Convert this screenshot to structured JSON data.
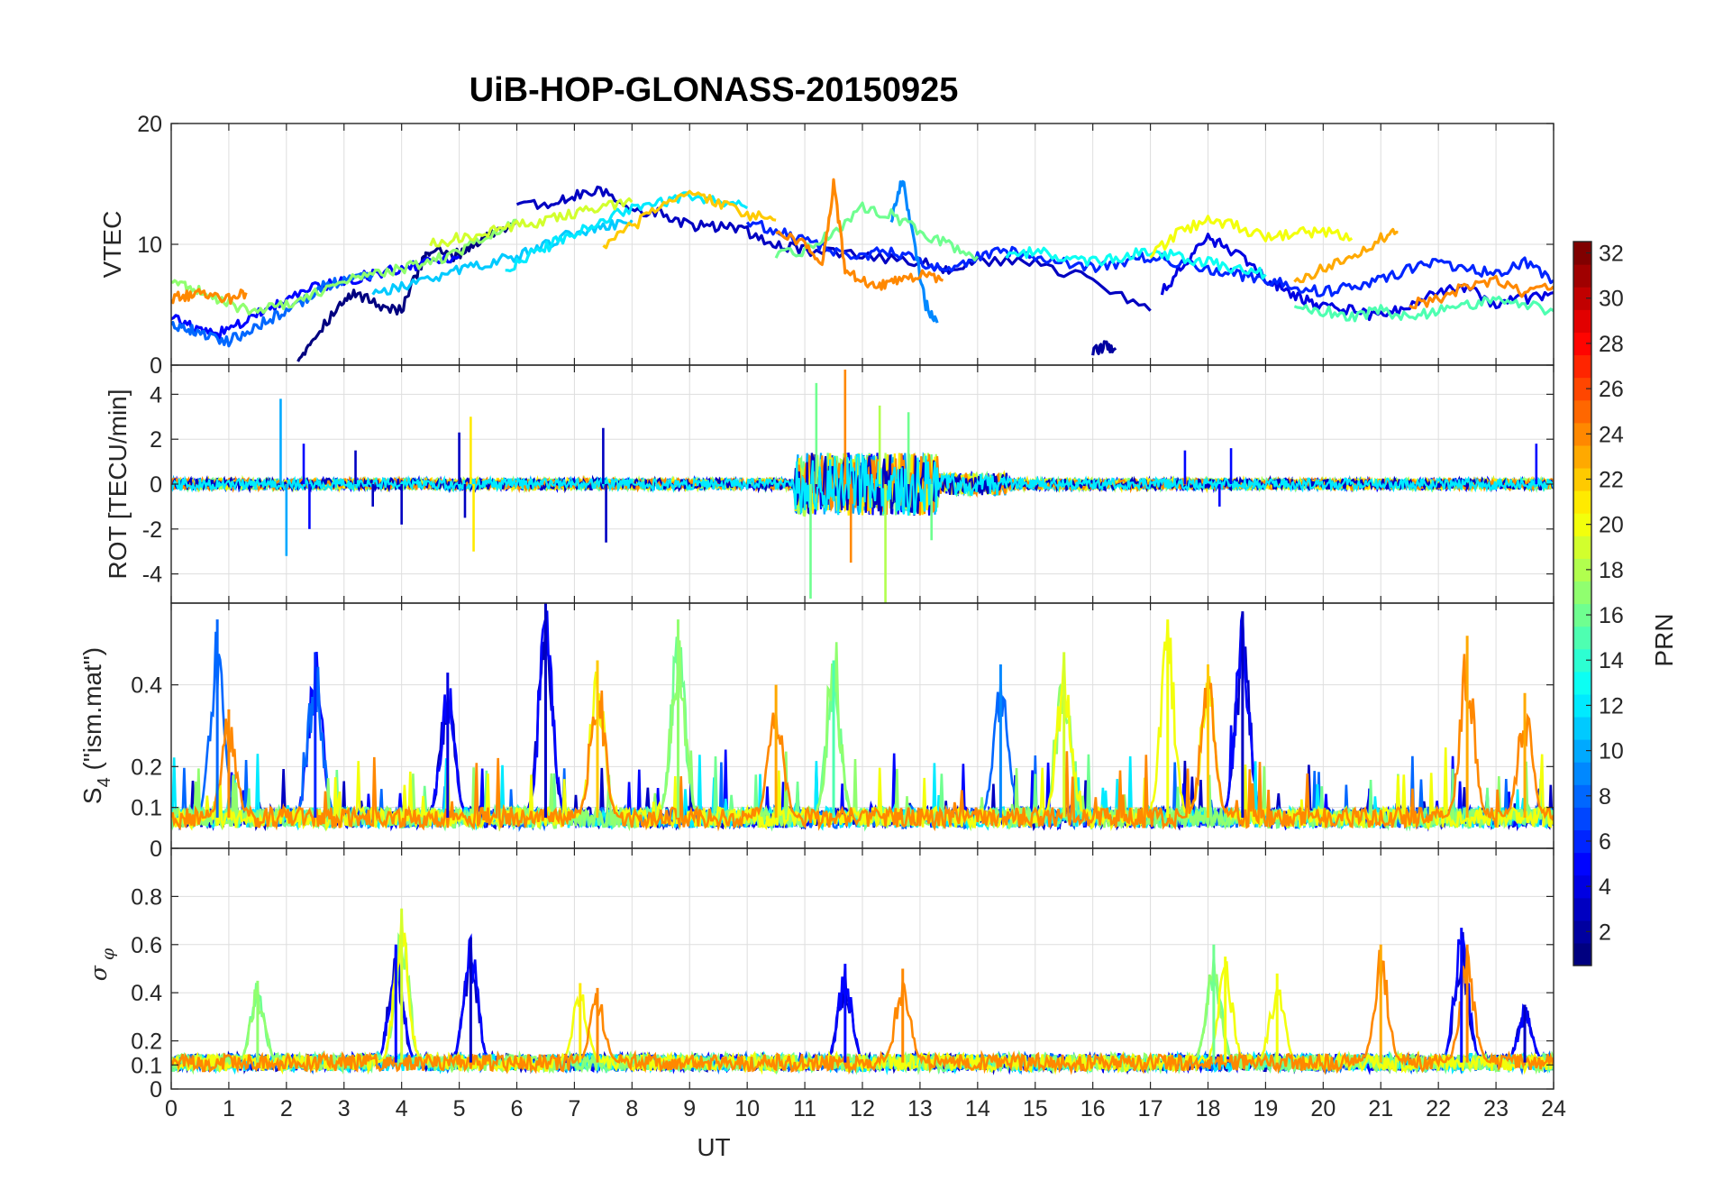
{
  "chart_data": [
    {
      "type": "line",
      "title": "UiB-HOP-GLONASS-20150925",
      "panel": "vtec",
      "ylabel": "VTEC",
      "ylim": [
        0,
        20
      ],
      "yticks": [
        0,
        10,
        20
      ],
      "xlim": [
        0,
        24
      ],
      "grid": true,
      "series": [
        {
          "prn": 1,
          "x": [
            2.2,
            2.5,
            2.9,
            3.2,
            3.6,
            4.0,
            4.3,
            4.5,
            4.9,
            5.2,
            5.6,
            6.0
          ],
          "y": [
            0.5,
            2.5,
            4.8,
            6.0,
            5.0,
            4.5,
            8.0,
            9.5,
            9.0,
            9.8,
            11.0,
            12.0
          ]
        },
        {
          "prn": 2,
          "x": [
            16.0,
            16.2,
            16.4
          ],
          "y": [
            1.0,
            1.6,
            1.4
          ]
        },
        {
          "prn": 3,
          "x": [
            6.0,
            6.6,
            7.0,
            7.5,
            8.0,
            8.5,
            9.0,
            9.5,
            10.0,
            10.5,
            11.0,
            12.0,
            13.0,
            13.5,
            14.0,
            15.0,
            16.0,
            17.0
          ],
          "y": [
            13.5,
            13.2,
            14.0,
            14.4,
            13.0,
            12.5,
            11.5,
            11.5,
            11.0,
            10.0,
            9.5,
            9.0,
            8.5,
            8.0,
            8.5,
            8.5,
            7.0,
            4.5
          ]
        },
        {
          "prn": 4,
          "x": [
            17.2,
            17.6,
            18.0,
            18.4,
            18.8,
            19.2,
            19.6,
            20.0,
            20.5,
            21.0,
            21.5,
            22.0,
            22.5,
            23.0,
            23.5,
            24.0
          ],
          "y": [
            6.0,
            8.5,
            10.5,
            9.5,
            8.0,
            6.5,
            5.5,
            5.0,
            4.5,
            4.0,
            4.8,
            6.0,
            6.5,
            5.0,
            5.5,
            6.0
          ]
        },
        {
          "prn": 5,
          "x": [
            0.0,
            0.4,
            0.8,
            1.2,
            1.6,
            2.0,
            2.5,
            3.0,
            3.5,
            4.0,
            4.5,
            5.0
          ],
          "y": [
            4.0,
            3.0,
            2.5,
            3.5,
            4.5,
            5.5,
            6.5,
            7.0,
            7.5,
            8.0,
            8.5,
            9.0
          ]
        },
        {
          "prn": 6,
          "x": [
            10.0,
            10.5,
            11.0,
            11.5,
            12.0,
            12.5,
            13.0,
            13.5,
            14.0,
            14.5,
            15.0,
            15.5,
            16.0,
            16.5,
            17.0,
            17.5,
            18.0,
            18.5,
            19.0,
            19.5,
            20.0,
            20.5,
            21.0,
            21.5,
            22.0,
            22.5,
            23.0,
            23.5,
            24.0
          ],
          "y": [
            12.0,
            11.0,
            10.5,
            9.5,
            9.0,
            9.5,
            8.5,
            8.0,
            9.0,
            9.5,
            9.0,
            8.5,
            8.0,
            8.5,
            9.0,
            8.5,
            8.0,
            7.5,
            7.0,
            6.5,
            6.0,
            6.5,
            7.0,
            8.0,
            8.5,
            8.0,
            7.5,
            8.5,
            7.0
          ]
        },
        {
          "prn": 8,
          "x": [
            0.0,
            0.3,
            0.6,
            1.0,
            1.4,
            1.8,
            2.2,
            2.6,
            3.0,
            3.5
          ],
          "y": [
            3.5,
            3.0,
            2.5,
            2.0,
            3.0,
            4.0,
            5.0,
            6.5,
            7.0,
            7.5
          ]
        },
        {
          "prn": 9,
          "x": [
            12.5,
            12.7,
            12.9,
            13.1,
            13.3
          ],
          "y": [
            12.0,
            15.5,
            10.0,
            5.0,
            3.5
          ]
        },
        {
          "prn": 11,
          "x": [
            3.5,
            4.0,
            4.5,
            5.0,
            5.5,
            6.0,
            6.5,
            7.0,
            7.5,
            8.0
          ],
          "y": [
            6.0,
            6.5,
            7.0,
            8.0,
            8.5,
            9.0,
            10.0,
            11.0,
            11.5,
            12.0
          ]
        },
        {
          "prn": 12,
          "x": [
            5.8,
            6.2,
            6.6,
            7.0,
            7.5,
            8.0,
            8.5,
            9.0,
            9.5,
            10.0
          ],
          "y": [
            8.0,
            9.0,
            10.0,
            11.0,
            12.0,
            13.0,
            13.5,
            14.0,
            13.5,
            13.0
          ]
        },
        {
          "prn": 13,
          "x": [
            14.5,
            15.0,
            15.5,
            16.0,
            16.5,
            17.0,
            17.5,
            18.0,
            18.5,
            19.0
          ],
          "y": [
            9.0,
            9.5,
            9.0,
            8.5,
            9.0,
            9.5,
            9.0,
            8.5,
            8.0,
            7.5
          ]
        },
        {
          "prn": 15,
          "x": [
            19.5,
            20.0,
            20.5,
            21.0,
            21.5,
            22.0,
            22.5,
            23.0,
            23.5,
            24.0
          ],
          "y": [
            5.0,
            4.5,
            4.0,
            4.5,
            4.0,
            4.5,
            5.0,
            5.5,
            5.0,
            4.5
          ]
        },
        {
          "prn": 16,
          "x": [
            10.5,
            11.0,
            11.5,
            12.0,
            12.5,
            13.0,
            13.5,
            14.0
          ],
          "y": [
            9.0,
            9.5,
            11.0,
            13.0,
            12.5,
            11.0,
            10.0,
            9.0
          ]
        },
        {
          "prn": 17,
          "x": [
            0.0,
            0.3,
            0.6,
            1.0,
            1.5,
            2.0,
            2.5,
            3.0,
            3.5,
            4.0,
            4.5,
            5.0,
            5.5,
            6.0
          ],
          "y": [
            7.0,
            6.5,
            6.0,
            5.0,
            4.5,
            5.0,
            6.0,
            7.0,
            7.5,
            8.0,
            8.5,
            9.5,
            10.5,
            12.0
          ]
        },
        {
          "prn": 19,
          "x": [
            4.5,
            5.0,
            5.5,
            6.0,
            6.5,
            7.0,
            7.5,
            8.0
          ],
          "y": [
            10.0,
            10.5,
            11.0,
            11.5,
            12.0,
            12.5,
            13.0,
            13.5
          ]
        },
        {
          "prn": 20,
          "x": [
            17.0,
            17.5,
            18.0,
            18.5,
            19.0,
            19.5,
            20.0,
            20.5
          ],
          "y": [
            9.0,
            11.0,
            12.0,
            11.5,
            10.5,
            11.0,
            11.0,
            10.5
          ]
        },
        {
          "prn": 22,
          "x": [
            7.5,
            8.0,
            8.5,
            9.0,
            9.5,
            10.0,
            10.5
          ],
          "y": [
            10.0,
            11.5,
            13.0,
            14.0,
            13.5,
            12.5,
            12.0
          ]
        },
        {
          "prn": 23,
          "x": [
            19.5,
            20.0,
            20.5,
            21.0,
            21.3
          ],
          "y": [
            7.0,
            8.0,
            9.0,
            10.5,
            11.0
          ]
        },
        {
          "prn": 24,
          "x": [
            0.0,
            0.3,
            0.6,
            1.0,
            1.3
          ],
          "y": [
            5.5,
            5.8,
            6.0,
            5.5,
            6.0
          ]
        },
        {
          "prn": 24,
          "x": [
            10.5,
            11.0,
            11.3,
            11.5,
            11.7,
            12.0,
            12.3,
            12.6,
            13.0,
            13.4
          ],
          "y": [
            11.0,
            10.0,
            8.0,
            15.0,
            8.0,
            7.0,
            6.5,
            7.0,
            7.5,
            7.0
          ]
        },
        {
          "prn": 24,
          "x": [
            21.5,
            22.0,
            22.5,
            23.0,
            23.5,
            24.0
          ],
          "y": [
            5.0,
            5.5,
            6.5,
            7.0,
            6.0,
            6.5
          ]
        }
      ]
    },
    {
      "type": "line",
      "panel": "rot",
      "ylabel": "ROT [TECU/min]",
      "ylim": [
        -5.3,
        5.3
      ],
      "yticks": [
        -4,
        -2,
        0,
        2,
        4
      ],
      "xlim": [
        0,
        24
      ],
      "grid": true,
      "spikes": [
        {
          "prn": 10,
          "x": 1.9,
          "y": 3.8
        },
        {
          "prn": 10,
          "x": 2.0,
          "y": -3.2
        },
        {
          "prn": 5,
          "x": 2.3,
          "y": 1.8
        },
        {
          "prn": 5,
          "x": 2.4,
          "y": -2.0
        },
        {
          "prn": 3,
          "x": 3.2,
          "y": 1.5
        },
        {
          "prn": 3,
          "x": 3.5,
          "y": -1.0
        },
        {
          "prn": 3,
          "x": 4.0,
          "y": -1.8
        },
        {
          "prn": 21,
          "x": 5.2,
          "y": 3.0
        },
        {
          "prn": 21,
          "x": 5.25,
          "y": -3.0
        },
        {
          "prn": 3,
          "x": 5.0,
          "y": 2.3
        },
        {
          "prn": 3,
          "x": 5.1,
          "y": -1.5
        },
        {
          "prn": 3,
          "x": 7.5,
          "y": 2.5
        },
        {
          "prn": 3,
          "x": 7.55,
          "y": -2.6
        },
        {
          "prn": 24,
          "x": 11.7,
          "y": 5.1
        },
        {
          "prn": 24,
          "x": 11.8,
          "y": -3.5
        },
        {
          "prn": 16,
          "x": 11.2,
          "y": 4.5
        },
        {
          "prn": 16,
          "x": 11.1,
          "y": -5.1
        },
        {
          "prn": 18,
          "x": 12.3,
          "y": 3.5
        },
        {
          "prn": 18,
          "x": 12.4,
          "y": -5.3
        },
        {
          "prn": 16,
          "x": 12.8,
          "y": 3.2
        },
        {
          "prn": 16,
          "x": 13.2,
          "y": -2.5
        },
        {
          "prn": 5,
          "x": 17.6,
          "y": 1.5
        },
        {
          "prn": 5,
          "x": 18.2,
          "y": -1.0
        },
        {
          "prn": 5,
          "x": 18.4,
          "y": 1.6
        },
        {
          "prn": 5,
          "x": 23.7,
          "y": 1.8
        }
      ]
    },
    {
      "type": "line",
      "panel": "s4",
      "ylabel": "S4 (\"ism.mat\")",
      "ylim": [
        0,
        0.6
      ],
      "yticks": [
        0,
        0.1,
        0.2,
        0.4
      ],
      "ytick_labels": [
        "0",
        "0.1",
        "0.2",
        "0.4"
      ],
      "xlim": [
        0,
        24
      ],
      "grid": true,
      "peaks": [
        {
          "prn": 8,
          "x": 0.8,
          "y": 0.56
        },
        {
          "prn": 24,
          "x": 1.0,
          "y": 0.34
        },
        {
          "prn": 6,
          "x": 2.5,
          "y": 0.48
        },
        {
          "prn": 4,
          "x": 4.8,
          "y": 0.43
        },
        {
          "prn": 3,
          "x": 6.5,
          "y": 0.6
        },
        {
          "prn": 22,
          "x": 7.4,
          "y": 0.46
        },
        {
          "prn": 17,
          "x": 8.8,
          "y": 0.56
        },
        {
          "prn": 23,
          "x": 10.5,
          "y": 0.4
        },
        {
          "prn": 15,
          "x": 11.5,
          "y": 0.46
        },
        {
          "prn": 9,
          "x": 14.4,
          "y": 0.45
        },
        {
          "prn": 19,
          "x": 15.5,
          "y": 0.48
        },
        {
          "prn": 20,
          "x": 17.3,
          "y": 0.56
        },
        {
          "prn": 3,
          "x": 18.6,
          "y": 0.58
        },
        {
          "prn": 22,
          "x": 18.0,
          "y": 0.45
        },
        {
          "prn": 23,
          "x": 22.5,
          "y": 0.52
        },
        {
          "prn": 23,
          "x": 23.5,
          "y": 0.38
        }
      ]
    },
    {
      "type": "line",
      "panel": "sigma_phi",
      "ylabel": "σφ",
      "ylim": [
        0,
        1
      ],
      "yticks": [
        0,
        0.1,
        0.2,
        0.4,
        0.6,
        0.8
      ],
      "ytick_labels": [
        "0",
        "0.1",
        "0.2",
        "0.4",
        "0.6",
        "0.8"
      ],
      "xlim": [
        0,
        24
      ],
      "xlabel": "UT",
      "xticks": [
        0,
        1,
        2,
        3,
        4,
        5,
        6,
        7,
        8,
        9,
        10,
        11,
        12,
        13,
        14,
        15,
        16,
        17,
        18,
        19,
        20,
        21,
        22,
        23,
        24
      ],
      "grid": true,
      "peaks": [
        {
          "prn": 17,
          "x": 1.5,
          "y": 0.45
        },
        {
          "prn": 5,
          "x": 3.9,
          "y": 0.6
        },
        {
          "prn": 19,
          "x": 4.0,
          "y": 0.75
        },
        {
          "prn": 3,
          "x": 5.2,
          "y": 0.63
        },
        {
          "prn": 21,
          "x": 7.1,
          "y": 0.44
        },
        {
          "prn": 24,
          "x": 7.4,
          "y": 0.42
        },
        {
          "prn": 5,
          "x": 11.7,
          "y": 0.52
        },
        {
          "prn": 24,
          "x": 12.7,
          "y": 0.5
        },
        {
          "prn": 16,
          "x": 18.1,
          "y": 0.6
        },
        {
          "prn": 20,
          "x": 18.3,
          "y": 0.55
        },
        {
          "prn": 20,
          "x": 19.2,
          "y": 0.48
        },
        {
          "prn": 23,
          "x": 21.0,
          "y": 0.6
        },
        {
          "prn": 5,
          "x": 22.4,
          "y": 0.67
        },
        {
          "prn": 24,
          "x": 22.5,
          "y": 0.6
        },
        {
          "prn": 3,
          "x": 23.5,
          "y": 0.35
        }
      ]
    }
  ],
  "colorbar": {
    "label": "PRN",
    "min": 1,
    "max": 32,
    "ticks": [
      2,
      4,
      6,
      8,
      10,
      12,
      14,
      16,
      18,
      20,
      22,
      24,
      26,
      28,
      30,
      32
    ],
    "colormap": "jet"
  },
  "labels": {
    "title": "UiB-HOP-GLONASS-20150925",
    "xlabel": "UT",
    "vtec_ylabel": "VTEC",
    "rot_ylabel": "ROT [TECU/min]",
    "s4_ylabel_main": "S",
    "s4_ylabel_sub": "4",
    "s4_ylabel_rest": " (\"ism.mat\")",
    "sigma_main": "σ",
    "sigma_sub": "φ",
    "colorbar_label": "PRN"
  }
}
